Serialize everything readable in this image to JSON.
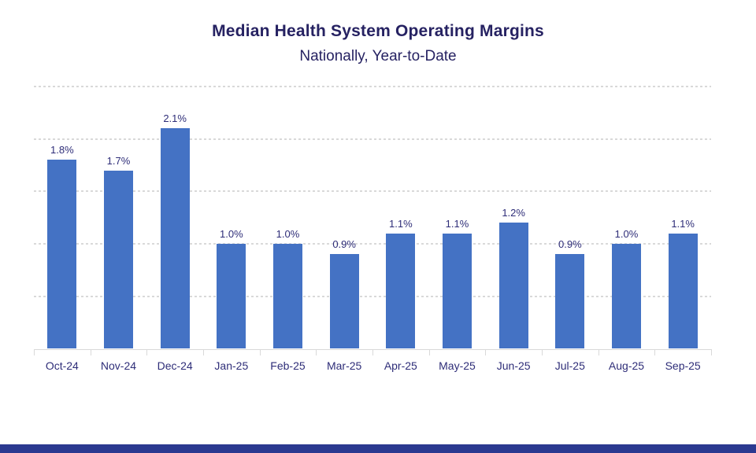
{
  "header": {
    "title": "Median Health System Operating Margins",
    "subtitle": "Nationally, Year-to-Date"
  },
  "chart_data": {
    "type": "bar",
    "title": "Median Health System Operating Margins",
    "subtitle": "Nationally, Year-to-Date",
    "categories": [
      "Oct-24",
      "Nov-24",
      "Dec-24",
      "Jan-25",
      "Feb-25",
      "Mar-25",
      "Apr-25",
      "May-25",
      "Jun-25",
      "Jul-25",
      "Aug-25",
      "Sep-25"
    ],
    "values": [
      1.8,
      1.7,
      2.1,
      1.0,
      1.0,
      0.9,
      1.1,
      1.1,
      1.2,
      0.9,
      1.0,
      1.1
    ],
    "data_labels": [
      "1.8%",
      "1.7%",
      "2.1%",
      "1.0%",
      "1.0%",
      "0.9%",
      "1.1%",
      "1.1%",
      "1.2%",
      "0.9%",
      "1.0%",
      "1.1%"
    ],
    "xlabel": "",
    "ylabel": "",
    "ylim": [
      0,
      2.5
    ],
    "grid_step": 0.5,
    "grid": "horizontal-dotted",
    "y_axis_labels_visible": false,
    "legend": "none",
    "colors": {
      "bar": "#4472C4",
      "title_text": "#262262",
      "label_text": "#2E2D78",
      "gridline": "#D9D9D9",
      "footer_accent": "#2B3990"
    }
  }
}
